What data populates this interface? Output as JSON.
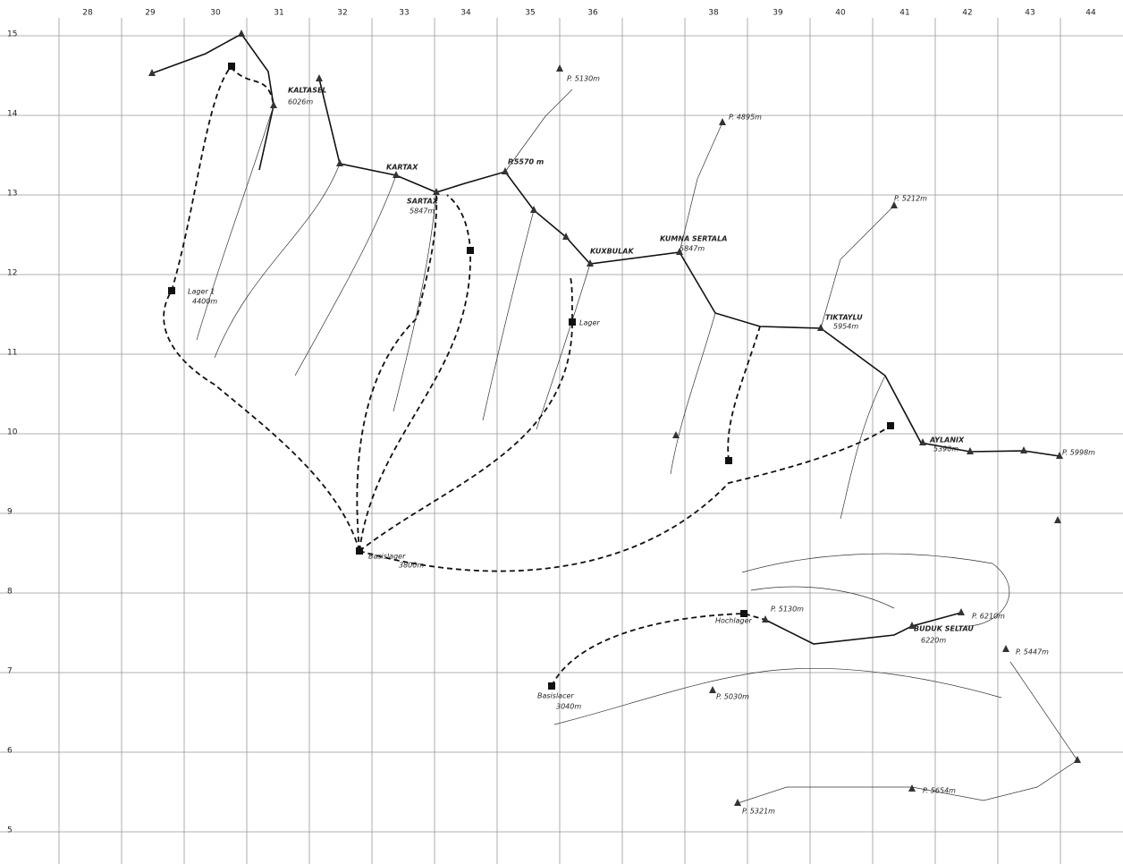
{
  "grid": {
    "columns": [
      "28",
      "29",
      "30",
      "31",
      "32",
      "33",
      "34",
      "35",
      "36",
      "38",
      "39",
      "40",
      "41",
      "42",
      "43",
      "44"
    ],
    "rows": [
      "15",
      "14",
      "13",
      "12",
      "11",
      "10",
      "9",
      "8",
      "7",
      "6",
      "5"
    ]
  },
  "labels": [
    "KALTASEL",
    "6026m",
    "KARTAX",
    "SARTAX",
    "5847m",
    "P.5570 m",
    "P. 5130m",
    "P. 4895m",
    "P. 5212m",
    "KUXBULAK",
    "KUMNA SERTALA",
    "5847m",
    "TIKTAYLU",
    "5954m",
    "AYLANIX",
    "5390m",
    "P. 5998m",
    "Lager 1",
    "4400m",
    "Lager",
    "Basislager",
    "3800m",
    "P. 5130m",
    "Hochlager",
    "P. 6210m",
    "BUDUK SELTAU",
    "6220m",
    "P. 5447m",
    "Basislacer",
    "3040m",
    "P. 5030m",
    "P. 5654m",
    "P. 5321m"
  ]
}
